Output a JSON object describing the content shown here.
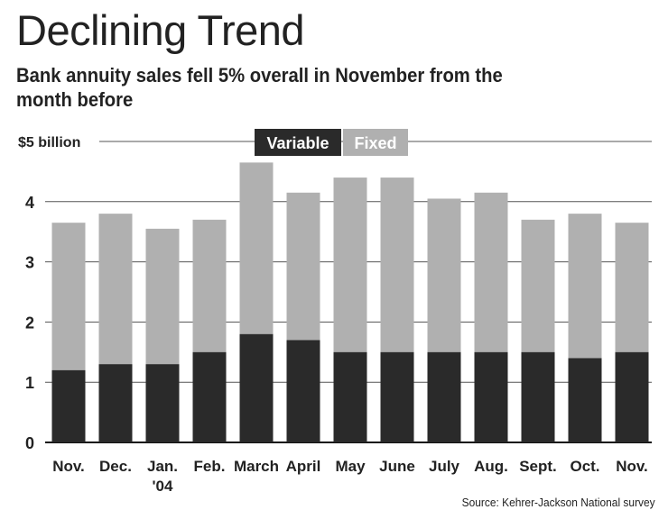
{
  "title": "Declining Trend",
  "subtitle": "Bank annuity sales fell 5% overall in November from the month before",
  "source": "Source: Kehrer-Jackson National survey",
  "colors": {
    "variable": "#2a2a2a",
    "fixed": "#b0b0b0",
    "text": "#222222",
    "grid": "#555555"
  },
  "chart_data": {
    "type": "bar",
    "stacked": true,
    "categories": [
      "Nov.",
      "Dec.",
      "Jan.\n'04",
      "Feb.",
      "March",
      "April",
      "May",
      "June",
      "July",
      "Aug.",
      "Sept.",
      "Oct.",
      "Nov."
    ],
    "series": [
      {
        "name": "Variable",
        "values": [
          1.2,
          1.3,
          1.3,
          1.5,
          1.8,
          1.7,
          1.5,
          1.5,
          1.5,
          1.5,
          1.5,
          1.4,
          1.5
        ]
      },
      {
        "name": "Fixed",
        "values": [
          2.45,
          2.5,
          2.25,
          2.2,
          2.85,
          2.45,
          2.9,
          2.9,
          2.55,
          2.65,
          2.2,
          2.4,
          2.15
        ]
      }
    ],
    "ylim": [
      0,
      5
    ],
    "yticks": [
      0,
      1,
      2,
      3,
      4,
      5
    ],
    "ytick_labels": [
      "0",
      "1",
      "2",
      "3",
      "4",
      "$5 billion"
    ],
    "grid": true,
    "legend_position": "top-center"
  }
}
